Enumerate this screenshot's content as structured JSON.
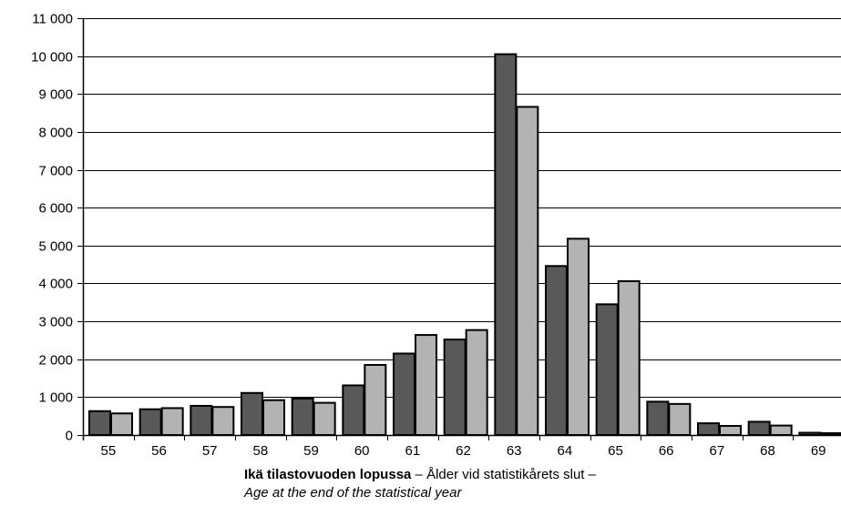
{
  "chart_data": {
    "type": "bar",
    "categories": [
      "55",
      "56",
      "57",
      "58",
      "59",
      "60",
      "61",
      "62",
      "63",
      "64",
      "65",
      "66",
      "67",
      "68",
      "69"
    ],
    "series": [
      {
        "values": [
          630,
          680,
          770,
          1110,
          960,
          1310,
          2150,
          2520,
          10050,
          4460,
          3450,
          880,
          310,
          350,
          60
        ],
        "color": "#595959"
      },
      {
        "values": [
          570,
          710,
          740,
          920,
          850,
          1850,
          2640,
          2770,
          8660,
          5180,
          4060,
          820,
          240,
          250,
          50
        ],
        "color": "#b3b3b3"
      }
    ],
    "ylim": [
      0,
      11000
    ],
    "yticks": [
      "0",
      "1 000",
      "2 000",
      "3 000",
      "4 000",
      "5 000",
      "6 000",
      "7 000",
      "8 000",
      "9 000",
      "10 000",
      "11 000"
    ],
    "grid": true,
    "xlabel": {
      "bold": "Ikä tilastovuoden lopussa",
      "rest": " – Ålder vid statistikårets slut –",
      "italic": "Age at the end of the statistical year"
    }
  }
}
